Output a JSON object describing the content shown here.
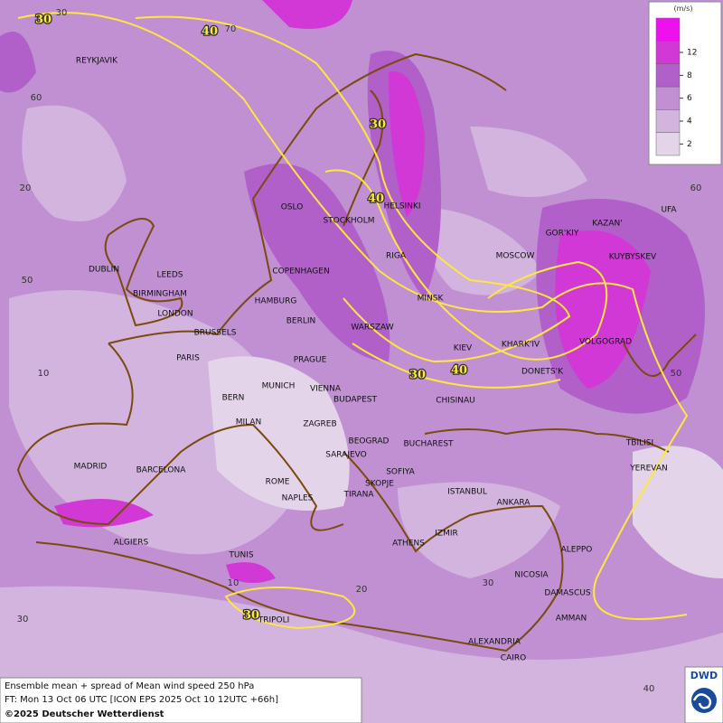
{
  "map": {
    "cities": [
      "REYKJAVIK",
      "OSLO",
      "STOCKHOLM",
      "HELSINKI",
      "DUBLIN",
      "LEEDS",
      "BIRMINGHAM",
      "LONDON",
      "COPENHAGEN",
      "RIGA",
      "MOSCOW",
      "GOR'KIY",
      "KAZAN'",
      "UFA",
      "KUYBYSKEV",
      "MINSK",
      "HAMBURG",
      "BERLIN",
      "WARSZAW",
      "BRUSSELS",
      "PARIS",
      "KIEV",
      "KHARK'IV",
      "VOLGOGRAD",
      "DONETS'K",
      "PRAGUE",
      "MUNICH",
      "VIENNA",
      "BERN",
      "BUDAPEST",
      "CHISINAU",
      "MILAN",
      "ZAGREB",
      "BEOGRAD",
      "BUCHAREST",
      "TBILISI",
      "MADRID",
      "BARCELONA",
      "SARAJEVO",
      "SOFIYA",
      "YEREVAN",
      "ROME",
      "SKOPJE",
      "ISTANBUL",
      "ANKARA",
      "NAPLES",
      "TIRANA",
      "IZMIR",
      "ALGIERS",
      "ATHENS",
      "ALEPPO",
      "TUNIS",
      "NICOSIA",
      "DAMASCUS",
      "TRIPOLI",
      "AMMAN",
      "ALEXANDRIA",
      "CAIRO"
    ],
    "contour_labels": [
      30,
      40,
      30,
      40,
      30,
      40,
      30
    ],
    "grid_labels": [
      30,
      70,
      60,
      20,
      50,
      10,
      10,
      20,
      30,
      40,
      30,
      60,
      50
    ],
    "legend": {
      "unit": "(m/s)",
      "levels": [
        2,
        4,
        6,
        8,
        12
      ],
      "colors": [
        "#e4d4ea",
        "#d2b4df",
        "#c090d2",
        "#b060c8",
        "#d238d6",
        "#ee10ee"
      ]
    },
    "footer": {
      "line1": "Ensemble mean + spread of Mean wind speed 250 hPa",
      "line2": "FT: Mon 13 Oct 06 UTC [ICON EPS 2025 Oct 10 12UTC +66h]",
      "line3": "©2025 Deutscher Wetterdienst"
    },
    "logo": "DWD"
  }
}
